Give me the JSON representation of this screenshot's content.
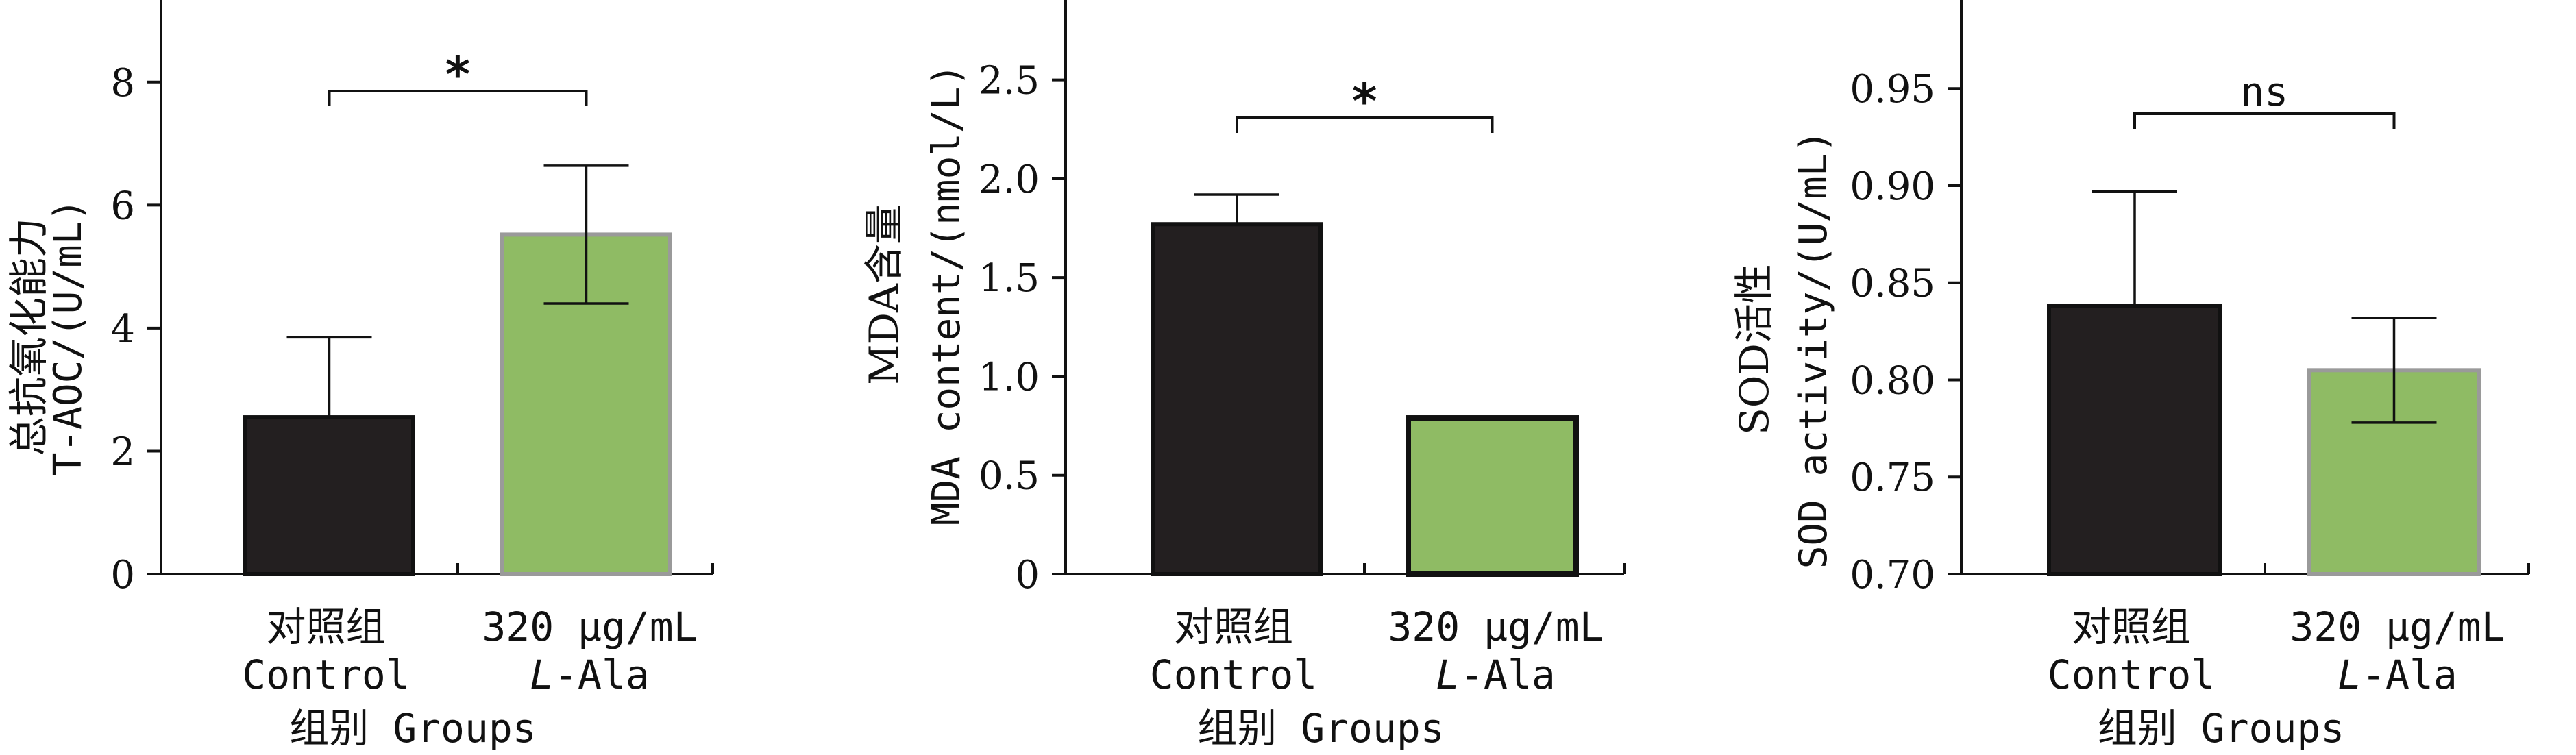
{
  "colors": {
    "control": "#231f20",
    "treatment": "#8fbb64",
    "axis": "#111111",
    "edge_treatment": "#9a9a9a",
    "edge_control": "#111111"
  },
  "chart_data": [
    {
      "type": "bar",
      "ylabel_cn": "总抗氧化能力",
      "ylabel_en": "T-AOC/(U/mL)",
      "xlabel": "组别 Groups",
      "categories": [
        {
          "cn": "对照组",
          "en": "Control",
          "en_italic_prefix": ""
        },
        {
          "cn": "320 μg/mL",
          "en": "-Ala",
          "en_italic_prefix": "L"
        }
      ],
      "values": [
        2.55,
        5.52
      ],
      "errors": [
        1.3,
        1.12
      ],
      "ylim": [
        0,
        9
      ],
      "yticks": [
        "0",
        "2",
        "4",
        "6",
        "8"
      ],
      "ytick_values": [
        0,
        2,
        4,
        6,
        8
      ],
      "significance": "*",
      "grid": false
    },
    {
      "type": "bar",
      "ylabel_cn": "MDA含量",
      "ylabel_en": "MDA content/(nmol/L)",
      "xlabel": "组别 Groups",
      "categories": [
        {
          "cn": "对照组",
          "en": "Control",
          "en_italic_prefix": ""
        },
        {
          "cn": "320 μg/mL",
          "en": "-Ala",
          "en_italic_prefix": "L"
        }
      ],
      "values": [
        1.77,
        0.79
      ],
      "errors": [
        0.15,
        0.0
      ],
      "ylim": [
        0,
        2.8
      ],
      "yticks": [
        "0",
        "0.5",
        "1.0",
        "1.5",
        "2.0",
        "2.5"
      ],
      "ytick_values": [
        0,
        0.5,
        1.0,
        1.5,
        2.0,
        2.5
      ],
      "significance": "*",
      "grid": false
    },
    {
      "type": "bar",
      "ylabel_cn": "SOD活性",
      "ylabel_en": "SOD activity/(U/mL)",
      "xlabel": "组别 Groups",
      "categories": [
        {
          "cn": "对照组",
          "en": "Control",
          "en_italic_prefix": ""
        },
        {
          "cn": "320 μg/mL",
          "en": "-Ala",
          "en_italic_prefix": "L"
        }
      ],
      "values": [
        0.838,
        0.805
      ],
      "errors": [
        0.059,
        0.027
      ],
      "ylim": [
        0.7,
        0.985
      ],
      "yticks": [
        "0.70",
        "0.75",
        "0.80",
        "0.85",
        "0.90",
        "0.95"
      ],
      "ytick_values": [
        0.7,
        0.75,
        0.8,
        0.85,
        0.9,
        0.95
      ],
      "significance": "ns",
      "grid": false
    }
  ]
}
